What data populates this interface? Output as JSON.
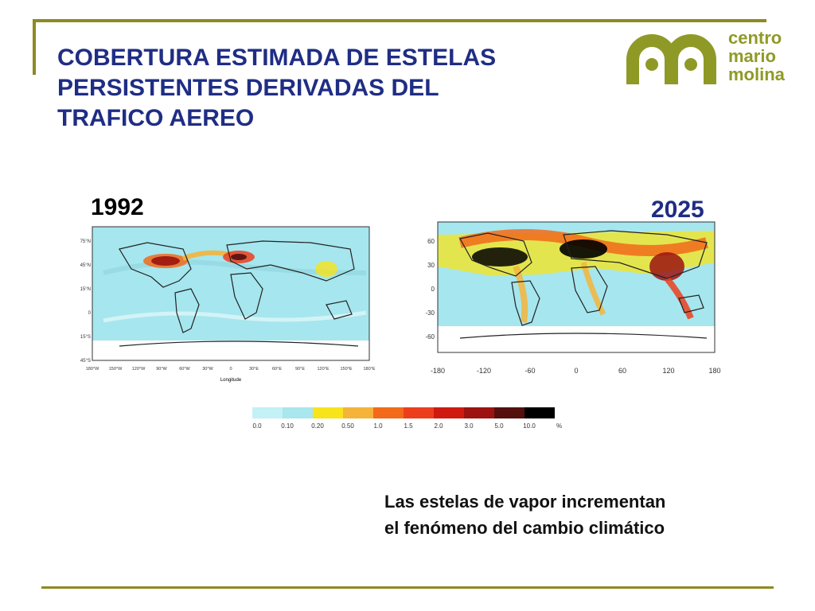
{
  "colors": {
    "frame": "#8e8a1f",
    "title": "#1f2d84",
    "logo": "#8f9a26",
    "year_1992": "#000000",
    "year_2025": "#1f2d84",
    "ocean": "#a6e6ee",
    "land": "#a6e6ee",
    "polar": "#ffffff",
    "coastline": "#222222"
  },
  "title": {
    "line1": "COBERTURA ESTIMADA DE ESTELAS",
    "line2": "PERSISTENTES DERIVADAS DEL",
    "line3": "TRAFICO AEREO"
  },
  "logo": {
    "line1": "centro",
    "line2": "mario",
    "line3": "molina"
  },
  "maps": {
    "left": {
      "year": "1992",
      "lat_ticks": [
        "75°N",
        "45°N",
        "15°N",
        "0",
        "15°S",
        "45°S"
      ],
      "lon_ticks": [
        "180°W",
        "150°W",
        "120°W",
        "90°W",
        "60°W",
        "30°W",
        "0",
        "30°E",
        "60°E",
        "90°E",
        "120°E",
        "150°E",
        "180°E"
      ],
      "xlabel": "Longitude"
    },
    "right": {
      "year": "2025",
      "lat_ticks": [
        "60",
        "30",
        "0",
        "-30",
        "-60"
      ],
      "lon_ticks": [
        "-180",
        "-120",
        "-60",
        "0",
        "60",
        "120",
        "180"
      ]
    }
  },
  "legend": {
    "bins": [
      {
        "color": "#c3f1f5",
        "label": "0.0"
      },
      {
        "color": "#a9e6ee",
        "label": "0.10"
      },
      {
        "color": "#f7e41a",
        "label": "0.20"
      },
      {
        "color": "#f4b43a",
        "label": "0.50"
      },
      {
        "color": "#f26a1a",
        "label": "1.0"
      },
      {
        "color": "#ec3e1d",
        "label": "1.5"
      },
      {
        "color": "#cf1a10",
        "label": "2.0"
      },
      {
        "color": "#9c1310",
        "label": "3.0"
      },
      {
        "color": "#54100d",
        "label": "5.0"
      },
      {
        "color": "#000000",
        "label": "10.0"
      }
    ],
    "unit": "%"
  },
  "caption": {
    "line1": "Las estelas de vapor incrementan",
    "line2": "el fenómeno del cambio climático"
  }
}
